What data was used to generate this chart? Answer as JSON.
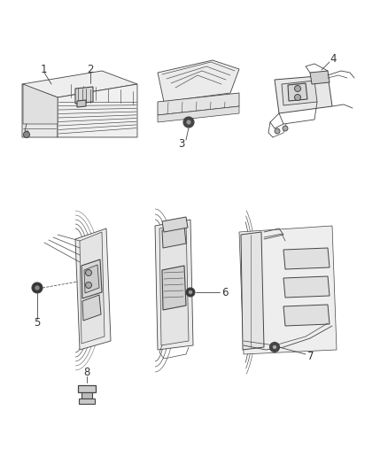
{
  "background_color": "#ffffff",
  "line_color": "#444444",
  "label_color": "#333333",
  "figsize": [
    4.38,
    5.33
  ],
  "dpi": 100,
  "label_fontsize": 8.5
}
